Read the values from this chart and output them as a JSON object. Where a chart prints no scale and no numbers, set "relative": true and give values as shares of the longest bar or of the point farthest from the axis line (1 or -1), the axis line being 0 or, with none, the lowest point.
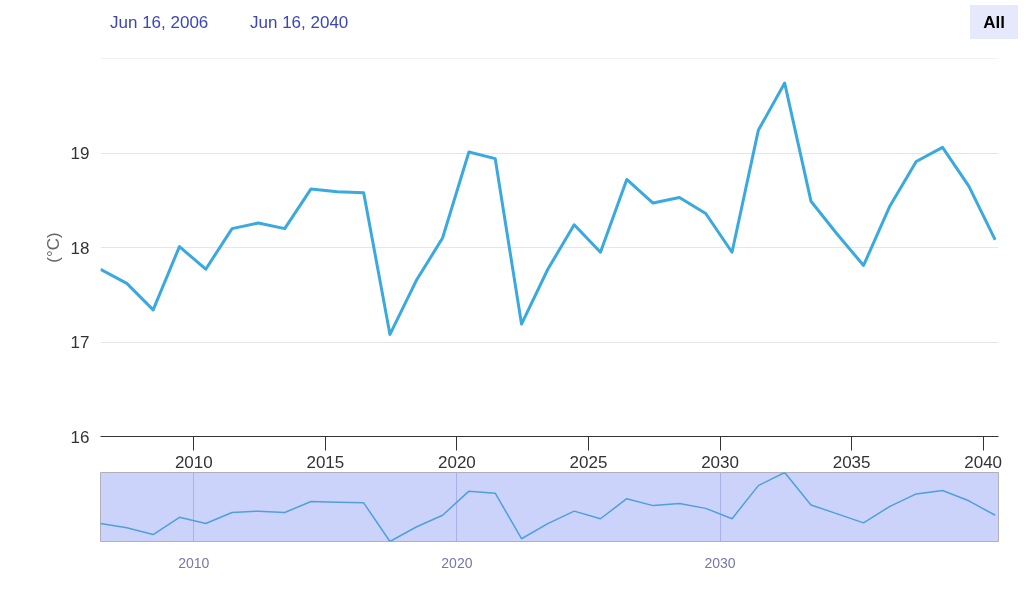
{
  "chart_data": [
    {
      "type": "line",
      "ylabel": "(°C)",
      "annotations": [
        "Jun 16, 2006",
        "Jun 16, 2040",
        "All"
      ],
      "x": [
        "2006-06-16",
        "2007-06-16",
        "2008-06-16",
        "2009-06-16",
        "2010-06-16",
        "2011-06-16",
        "2012-06-16",
        "2013-06-16",
        "2014-06-16",
        "2015-06-16",
        "2016-06-16",
        "2017-06-16",
        "2018-06-16",
        "2019-06-16",
        "2020-06-16",
        "2021-06-16",
        "2022-06-16",
        "2023-06-16",
        "2024-06-16",
        "2025-06-16",
        "2026-06-16",
        "2027-06-16",
        "2028-06-16",
        "2029-06-16",
        "2030-06-16",
        "2031-06-16",
        "2032-06-16",
        "2033-06-16",
        "2034-06-16",
        "2035-06-16",
        "2036-06-16",
        "2037-06-16",
        "2038-06-16",
        "2039-06-16",
        "2040-06-16"
      ],
      "series": [
        {
          "color": "#3aa9e0",
          "values": [
            17.77,
            17.62,
            17.34,
            18.01,
            17.77,
            18.2,
            18.26,
            18.2,
            18.62,
            18.59,
            18.58,
            17.08,
            17.65,
            18.1,
            19.01,
            18.94,
            17.19,
            17.77,
            18.24,
            17.95,
            18.72,
            18.47,
            18.53,
            18.36,
            17.95,
            19.24,
            19.74,
            18.49,
            18.14,
            17.81,
            18.44,
            18.91,
            19.06,
            18.65,
            18.08
          ]
        }
      ],
      "xlim": [
        "2006-06-16",
        "2040-08-01"
      ],
      "xticks": [
        {
          "value": "2010-01-01",
          "label": "2010"
        },
        {
          "value": "2015-01-01",
          "label": "2015"
        },
        {
          "value": "2020-01-01",
          "label": "2020"
        },
        {
          "value": "2025-01-01",
          "label": "2025"
        },
        {
          "value": "2030-01-01",
          "label": "2030"
        },
        {
          "value": "2035-01-01",
          "label": "2035"
        },
        {
          "value": "2040-01-01",
          "label": "2040"
        }
      ],
      "ylim": [
        16,
        20
      ],
      "yticks": [
        16,
        17,
        18,
        19,
        {
          "value": 20,
          "label": null
        }
      ],
      "grid": "y"
    },
    {
      "type": "line",
      "x": [
        "2006-06-16",
        "2007-06-16",
        "2008-06-16",
        "2009-06-16",
        "2010-06-16",
        "2011-06-16",
        "2012-06-16",
        "2013-06-16",
        "2014-06-16",
        "2015-06-16",
        "2016-06-16",
        "2017-06-16",
        "2018-06-16",
        "2019-06-16",
        "2020-06-16",
        "2021-06-16",
        "2022-06-16",
        "2023-06-16",
        "2024-06-16",
        "2025-06-16",
        "2026-06-16",
        "2027-06-16",
        "2028-06-16",
        "2029-06-16",
        "2030-06-16",
        "2031-06-16",
        "2032-06-16",
        "2033-06-16",
        "2034-06-16",
        "2035-06-16",
        "2036-06-16",
        "2037-06-16",
        "2038-06-16",
        "2039-06-16",
        "2040-06-16"
      ],
      "series": [
        {
          "color": "#4f9fdc",
          "values": [
            0.26,
            0.2,
            0.1,
            0.35,
            0.26,
            0.42,
            0.44,
            0.42,
            0.58,
            0.57,
            0.56,
            0,
            0.21,
            0.38,
            0.73,
            0.7,
            0.04,
            0.26,
            0.44,
            0.33,
            0.62,
            0.52,
            0.55,
            0.48,
            0.33,
            0.81,
            1,
            0.53,
            0.4,
            0.27,
            0.51,
            0.69,
            0.74,
            0.59,
            0.38
          ]
        }
      ],
      "relative": true,
      "xlim": [
        "2006-06-16",
        "2040-08-01"
      ],
      "xticks": [
        {
          "value": "2010-01-01",
          "label": "2010"
        },
        {
          "value": "2020-01-01",
          "label": "2020"
        },
        {
          "value": "2030-01-01",
          "label": "2030"
        }
      ],
      "grid": "x",
      "tick_labels": "x"
    }
  ]
}
